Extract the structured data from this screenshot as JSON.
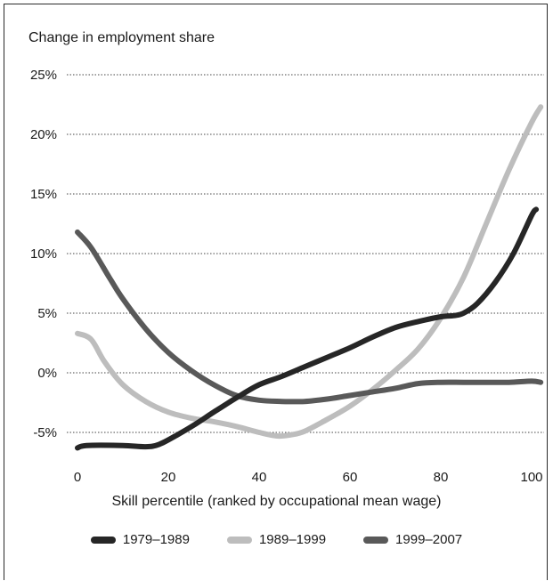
{
  "chart_data": {
    "type": "line",
    "title": "",
    "subtitle": "Change in employment share",
    "xlabel": "Skill percentile (ranked by occupational mean wage)",
    "ylabel": "",
    "xlim": [
      0,
      100
    ],
    "ylim": [
      -5,
      25
    ],
    "x_ticks": [
      "0",
      "20",
      "40",
      "60",
      "80",
      "100"
    ],
    "y_ticks": [
      "25%",
      "20%",
      "15%",
      "10%",
      "5%",
      "0%",
      "-5%"
    ],
    "grid": "horizontal dotted",
    "legend_position": "bottom",
    "series": [
      {
        "name": "1979–1989",
        "color": "#262626",
        "points": [
          [
            0,
            -6.3
          ],
          [
            2,
            -6.1
          ],
          [
            10,
            -6.1
          ],
          [
            15,
            -6.2
          ],
          [
            18,
            -6.0
          ],
          [
            22,
            -5.2
          ],
          [
            26,
            -4.3
          ],
          [
            30,
            -3.3
          ],
          [
            35,
            -2.1
          ],
          [
            40,
            -1.0
          ],
          [
            45,
            -0.3
          ],
          [
            50,
            0.5
          ],
          [
            55,
            1.3
          ],
          [
            60,
            2.1
          ],
          [
            65,
            3.0
          ],
          [
            70,
            3.8
          ],
          [
            75,
            4.3
          ],
          [
            80,
            4.7
          ],
          [
            83,
            4.8
          ],
          [
            85,
            5.0
          ],
          [
            88,
            5.8
          ],
          [
            92,
            7.6
          ],
          [
            96,
            10.0
          ],
          [
            100,
            13.2
          ],
          [
            101,
            13.7
          ]
        ]
      },
      {
        "name": "1989–1999",
        "color": "#bdbdbd",
        "points": [
          [
            0,
            3.3
          ],
          [
            3,
            2.8
          ],
          [
            6,
            0.9
          ],
          [
            10,
            -1.0
          ],
          [
            15,
            -2.4
          ],
          [
            20,
            -3.3
          ],
          [
            25,
            -3.8
          ],
          [
            30,
            -4.1
          ],
          [
            35,
            -4.5
          ],
          [
            40,
            -5.0
          ],
          [
            44,
            -5.3
          ],
          [
            47,
            -5.2
          ],
          [
            50,
            -4.9
          ],
          [
            55,
            -3.9
          ],
          [
            60,
            -2.8
          ],
          [
            65,
            -1.4
          ],
          [
            70,
            0.2
          ],
          [
            75,
            2.0
          ],
          [
            80,
            4.6
          ],
          [
            85,
            8.0
          ],
          [
            90,
            12.5
          ],
          [
            95,
            17.0
          ],
          [
            100,
            21.0
          ],
          [
            102,
            22.3
          ]
        ]
      },
      {
        "name": "1999–2007",
        "color": "#595959",
        "points": [
          [
            0,
            11.8
          ],
          [
            3,
            10.5
          ],
          [
            7,
            8.0
          ],
          [
            10,
            6.2
          ],
          [
            15,
            3.7
          ],
          [
            20,
            1.7
          ],
          [
            25,
            0.2
          ],
          [
            30,
            -1.0
          ],
          [
            35,
            -1.9
          ],
          [
            40,
            -2.3
          ],
          [
            45,
            -2.4
          ],
          [
            50,
            -2.4
          ],
          [
            55,
            -2.2
          ],
          [
            60,
            -1.9
          ],
          [
            65,
            -1.6
          ],
          [
            70,
            -1.3
          ],
          [
            75,
            -0.9
          ],
          [
            80,
            -0.8
          ],
          [
            85,
            -0.8
          ],
          [
            90,
            -0.8
          ],
          [
            95,
            -0.8
          ],
          [
            100,
            -0.7
          ],
          [
            102,
            -0.8
          ]
        ]
      }
    ]
  }
}
